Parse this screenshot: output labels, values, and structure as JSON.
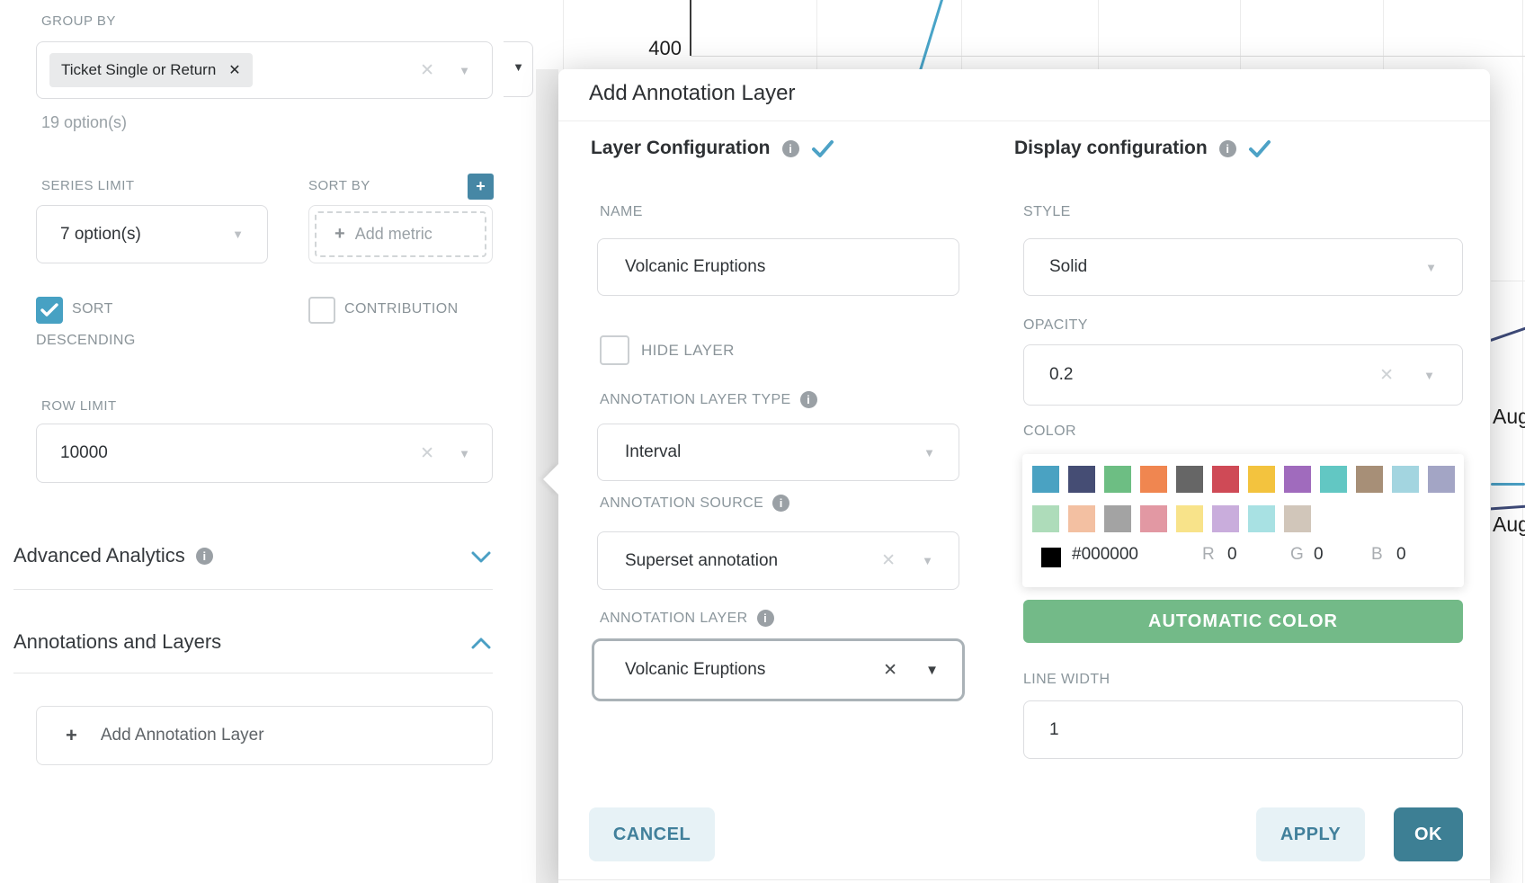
{
  "icons": {
    "caret_down": "▼",
    "clear_x": "✕",
    "remove_x": "✕",
    "plus": "+",
    "info": "i"
  },
  "left_panel": {
    "group_by": {
      "label": "GROUP BY",
      "chip": "Ticket Single or Return",
      "helper": "19 option(s)"
    },
    "series_limit": {
      "label": "SERIES LIMIT",
      "value": "7 option(s)"
    },
    "sort_by": {
      "label": "SORT BY",
      "placeholder": "Add metric"
    },
    "sort_descending_label_line1": "SORT",
    "sort_descending_label_line2": "DESCENDING",
    "contribution_label": "CONTRIBUTION",
    "row_limit": {
      "label": "ROW LIMIT",
      "value": "10000"
    },
    "advanced_analytics_label": "Advanced Analytics",
    "annotations_layers_label": "Annotations and Layers",
    "add_annotation_layer_label": "Add Annotation Layer"
  },
  "chart": {
    "y_tick": "400",
    "right_axis_label_1": "Aug",
    "right_axis_label_2": "Aug"
  },
  "modal": {
    "title": "Add Annotation Layer",
    "layer_config": {
      "heading": "Layer Configuration",
      "name_label": "NAME",
      "name_value": "Volcanic Eruptions",
      "hide_layer_label": "HIDE LAYER",
      "type_label": "ANNOTATION LAYER TYPE",
      "type_value": "Interval",
      "source_label": "ANNOTATION SOURCE",
      "source_value": "Superset annotation",
      "layer_label": "ANNOTATION LAYER",
      "layer_value": "Volcanic Eruptions"
    },
    "display_config": {
      "heading": "Display configuration",
      "style_label": "STYLE",
      "style_value": "Solid",
      "opacity_label": "OPACITY",
      "opacity_value": "0.2",
      "color_label": "COLOR",
      "palette_row1": [
        "#4aa2c2",
        "#454d74",
        "#6dbe83",
        "#f08650",
        "#666666",
        "#cf4a56",
        "#f3c33e",
        "#a06bbd",
        "#62c7c3",
        "#a78f77",
        "#a3d5e0",
        "#a3a5c5"
      ],
      "palette_row2": [
        "#aedcba",
        "#f3c0a2",
        "#a3a3a3",
        "#e298a3",
        "#f8e38a",
        "#c9addc",
        "#a8e1e3",
        "#d1c6ba"
      ],
      "current_color_hex": "#000000",
      "r_label": "R",
      "r_value": "0",
      "g_label": "G",
      "g_value": "0",
      "b_label": "B",
      "b_value": "0",
      "automatic_color_label": "AUTOMATIC COLOR",
      "line_width_label": "LINE WIDTH",
      "line_width_value": "1"
    },
    "footer": {
      "cancel": "CANCEL",
      "apply": "APPLY",
      "ok": "OK"
    }
  },
  "colors": {
    "accent_teal": "#4a9fc4",
    "button_teal": "#3d7f94",
    "button_teal_light_bg": "#e7f2f6",
    "green_button": "#73ba88",
    "checkbox_checked": "#47a1c3",
    "navy_line": "#3e4a78",
    "blue_line": "#49a4c8"
  }
}
